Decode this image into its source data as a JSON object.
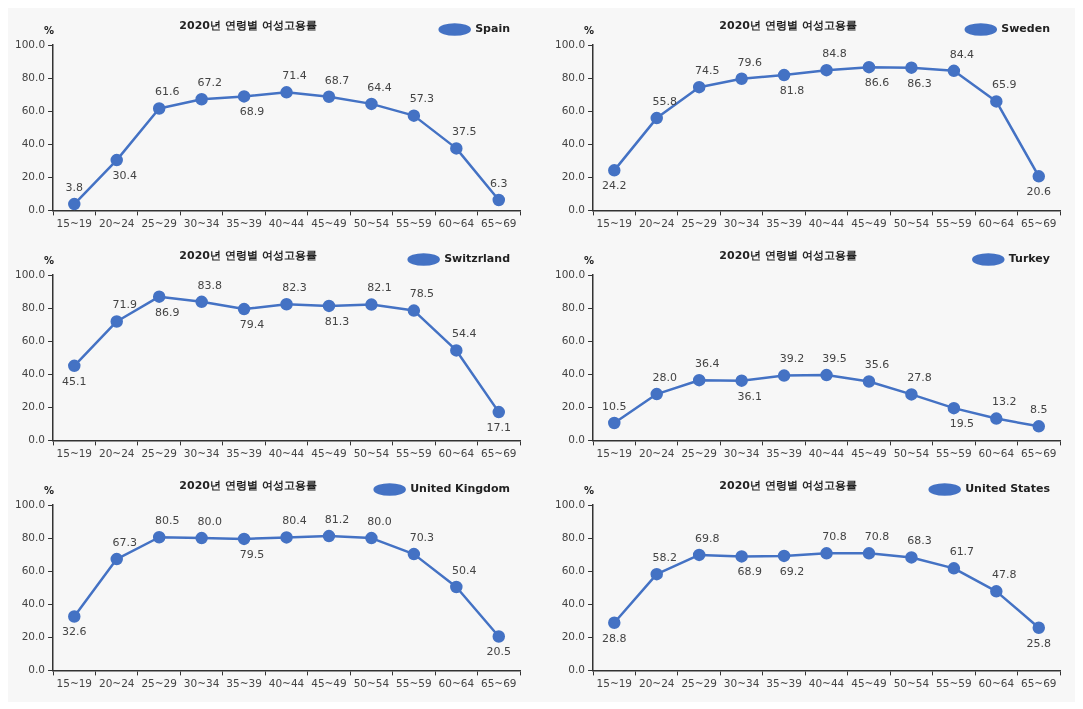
{
  "chart_data": [
    {
      "type": "line",
      "title": "2020년 연령별 여성고용률",
      "ylabel": "%",
      "categories": [
        "15~19",
        "20~24",
        "25~29",
        "30~34",
        "35~39",
        "40~44",
        "45~49",
        "50~54",
        "55~59",
        "60~64",
        "65~69"
      ],
      "series": [
        {
          "name": "Spain",
          "color": "#4472c4",
          "values": [
            3.8,
            30.4,
            61.6,
            67.2,
            68.9,
            71.4,
            68.7,
            64.4,
            57.3,
            37.5,
            6.3
          ],
          "value_labels": [
            "3.8",
            "30.4",
            "61.6",
            "67.2",
            "68.9",
            "71.4",
            "68.7",
            "64.4",
            "57.3",
            "37.5",
            "6.3"
          ]
        }
      ],
      "ylim": [
        0,
        100
      ],
      "yticks": [
        {
          "value": 0,
          "label": "0.0"
        },
        {
          "value": 20,
          "label": "20.0"
        },
        {
          "value": 40,
          "label": "40.0"
        },
        {
          "value": 60,
          "label": "60.0"
        },
        {
          "value": 80,
          "label": "80.0"
        },
        {
          "value": 100,
          "label": "100.0"
        }
      ],
      "legend": "top right",
      "marker": "circle",
      "grid": false
    },
    {
      "type": "line",
      "title": "2020년 연령별 여성고용률",
      "ylabel": "%",
      "categories": [
        "15~19",
        "20~24",
        "25~29",
        "30~34",
        "35~39",
        "40~44",
        "45~49",
        "50~54",
        "55~59",
        "60~64",
        "65~69"
      ],
      "series": [
        {
          "name": "Sweden",
          "color": "#4472c4",
          "values": [
            24.2,
            55.8,
            74.5,
            79.6,
            81.8,
            84.8,
            86.6,
            86.3,
            84.4,
            65.9,
            20.6
          ],
          "value_labels": [
            "24.2",
            "55.8",
            "74.5",
            "79.6",
            "81.8",
            "84.8",
            "86.6",
            "86.3",
            "84.4",
            "65.9",
            "20.6"
          ]
        }
      ],
      "ylim": [
        0,
        100
      ],
      "yticks": [
        {
          "value": 0,
          "label": "0.0"
        },
        {
          "value": 20,
          "label": "20.0"
        },
        {
          "value": 40,
          "label": "40.0"
        },
        {
          "value": 60,
          "label": "60.0"
        },
        {
          "value": 80,
          "label": "80.0"
        },
        {
          "value": 100,
          "label": "100.0"
        }
      ],
      "legend": "top right",
      "marker": "circle",
      "grid": false
    },
    {
      "type": "line",
      "title": "2020년 연령별 여성고용률",
      "ylabel": "%",
      "categories": [
        "15~19",
        "20~24",
        "25~29",
        "30~34",
        "35~39",
        "40~44",
        "45~49",
        "50~54",
        "55~59",
        "60~64",
        "65~69"
      ],
      "series": [
        {
          "name": "Switzrland",
          "color": "#4472c4",
          "values": [
            45.1,
            71.9,
            86.9,
            83.8,
            79.4,
            82.3,
            81.3,
            82.1,
            78.5,
            54.4,
            17.1
          ],
          "value_labels": [
            "45.1",
            "71.9",
            "86.9",
            "83.8",
            "79.4",
            "82.3",
            "81.3",
            "82.1",
            "78.5",
            "54.4",
            "17.1"
          ]
        }
      ],
      "ylim": [
        0,
        100
      ],
      "yticks": [
        {
          "value": 0,
          "label": "0.0"
        },
        {
          "value": 20,
          "label": "20.0"
        },
        {
          "value": 40,
          "label": "40.0"
        },
        {
          "value": 60,
          "label": "60.0"
        },
        {
          "value": 80,
          "label": "80.0"
        },
        {
          "value": 100,
          "label": "100.0"
        }
      ],
      "legend": "top right",
      "marker": "circle",
      "grid": false
    },
    {
      "type": "line",
      "title": "2020년 연령별 여성고용률",
      "ylabel": "%",
      "categories": [
        "15~19",
        "20~24",
        "25~29",
        "30~34",
        "35~39",
        "40~44",
        "45~49",
        "50~54",
        "55~59",
        "60~64",
        "65~69"
      ],
      "series": [
        {
          "name": "Turkey",
          "color": "#4472c4",
          "values": [
            10.5,
            28.0,
            36.4,
            36.1,
            39.2,
            39.5,
            35.6,
            27.8,
            19.5,
            13.2,
            8.5
          ],
          "value_labels": [
            "10.5",
            "28.0",
            "36.4",
            "36.1",
            "39.2",
            "39.5",
            "35.6",
            "27.8",
            "19.5",
            "13.2",
            "8.5"
          ]
        }
      ],
      "ylim": [
        0,
        100
      ],
      "yticks": [
        {
          "value": 0,
          "label": "0.0"
        },
        {
          "value": 20,
          "label": "20.0"
        },
        {
          "value": 40,
          "label": "40.0"
        },
        {
          "value": 60,
          "label": "60.0"
        },
        {
          "value": 80,
          "label": "80.0"
        },
        {
          "value": 100,
          "label": "100.0"
        }
      ],
      "legend": "top right",
      "marker": "circle",
      "grid": false
    },
    {
      "type": "line",
      "title": "2020년 연령별 여성고용률",
      "ylabel": "%",
      "categories": [
        "15~19",
        "20~24",
        "25~29",
        "30~34",
        "35~39",
        "40~44",
        "45~49",
        "50~54",
        "55~59",
        "60~64",
        "65~69"
      ],
      "series": [
        {
          "name": "United Kingdom",
          "color": "#4472c4",
          "values": [
            32.6,
            67.3,
            80.5,
            80.0,
            79.5,
            80.4,
            81.2,
            80.0,
            70.3,
            50.4,
            20.5
          ],
          "value_labels": [
            "32.6",
            "67.3",
            "80.5",
            "80.0",
            "79.5",
            "80.4",
            "81.2",
            "80.0",
            "70.3",
            "50.4",
            "20.5"
          ]
        }
      ],
      "ylim": [
        0,
        100
      ],
      "yticks": [
        {
          "value": 0,
          "label": "0.0"
        },
        {
          "value": 20,
          "label": "20.0"
        },
        {
          "value": 40,
          "label": "40.0"
        },
        {
          "value": 60,
          "label": "60.0"
        },
        {
          "value": 80,
          "label": "80.0"
        },
        {
          "value": 100,
          "label": "100.0"
        }
      ],
      "legend": "top right",
      "marker": "circle",
      "grid": false
    },
    {
      "type": "line",
      "title": "2020년 연령별 여성고용률",
      "ylabel": "%",
      "categories": [
        "15~19",
        "20~24",
        "25~29",
        "30~34",
        "35~39",
        "40~44",
        "45~49",
        "50~54",
        "55~59",
        "60~64",
        "65~69"
      ],
      "series": [
        {
          "name": "United States",
          "color": "#4472c4",
          "values": [
            28.8,
            58.2,
            69.8,
            68.9,
            69.2,
            70.8,
            70.8,
            68.3,
            61.7,
            47.8,
            25.8
          ],
          "value_labels": [
            "28.8",
            "58.2",
            "69.8",
            "68.9",
            "69.2",
            "70.8",
            "70.8",
            "68.3",
            "61.7",
            "47.8",
            "25.8"
          ]
        }
      ],
      "ylim": [
        0,
        100
      ],
      "yticks": [
        {
          "value": 0,
          "label": "0.0"
        },
        {
          "value": 20,
          "label": "20.0"
        },
        {
          "value": 40,
          "label": "40.0"
        },
        {
          "value": 60,
          "label": "60.0"
        },
        {
          "value": 80,
          "label": "80.0"
        },
        {
          "value": 100,
          "label": "100.0"
        }
      ],
      "legend": "top right",
      "marker": "circle",
      "grid": false
    }
  ]
}
